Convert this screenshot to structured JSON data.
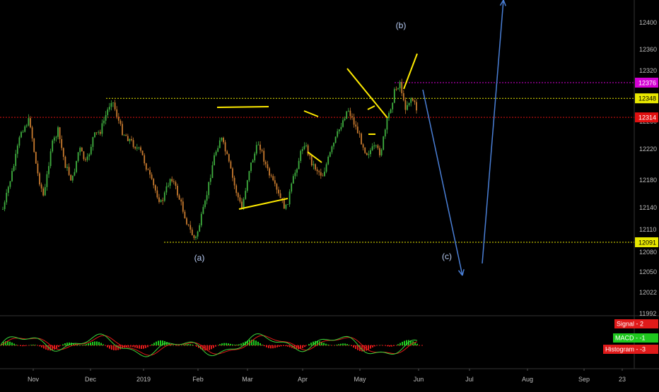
{
  "chart_data": {
    "type": "line",
    "price_axis": {
      "ticks": [
        "12400",
        "12360",
        "12320",
        "12260",
        "12220",
        "12180",
        "12140",
        "12110",
        "12080",
        "12050",
        "12022",
        "11992"
      ]
    },
    "price_labels": [
      {
        "text": "12376",
        "price": 12376,
        "color": "#d400d4"
      },
      {
        "text": "12348",
        "price": 12348,
        "color": "#e8e800"
      },
      {
        "text": "12314",
        "price": 12314,
        "color": "#e01010"
      },
      {
        "text": "12091",
        "price": 12091,
        "color": "#e8e800"
      }
    ],
    "x_axis": {
      "labels": [
        "Nov",
        "Dec",
        "2019",
        "Feb",
        "Mar",
        "Apr",
        "May",
        "Jun",
        "Jul",
        "Aug",
        "Sep",
        "23"
      ]
    },
    "wave_labels": [
      "(a)",
      "(b)",
      "(c)"
    ],
    "macd_legend": [
      {
        "name": "Signal",
        "value": "2",
        "color": "#e01a1a"
      },
      {
        "name": "MACD",
        "value": "-1",
        "color": "#1ec81e"
      },
      {
        "name": "Histogram",
        "value": "-3",
        "color": "#e01a1a"
      }
    ],
    "price_path": [
      [
        12150,
        5
      ],
      [
        12190,
        12
      ],
      [
        12230,
        20
      ],
      [
        12290,
        30
      ],
      [
        12310,
        42
      ],
      [
        12220,
        52
      ],
      [
        12170,
        62
      ],
      [
        12260,
        72
      ],
      [
        12290,
        82
      ],
      [
        12230,
        92
      ],
      [
        12200,
        102
      ],
      [
        12260,
        112
      ],
      [
        12230,
        122
      ],
      [
        12280,
        132
      ],
      [
        12290,
        142
      ],
      [
        12348,
        158
      ],
      [
        12290,
        172
      ],
      [
        12270,
        186
      ],
      [
        12250,
        200
      ],
      [
        12200,
        214
      ],
      [
        12160,
        228
      ],
      [
        12210,
        242
      ],
      [
        12160,
        256
      ],
      [
        12120,
        266
      ],
      [
        12094,
        276
      ],
      [
        12160,
        290
      ],
      [
        12240,
        302
      ],
      [
        12280,
        312
      ],
      [
        12240,
        322
      ],
      [
        12190,
        332
      ],
      [
        12150,
        342
      ],
      [
        12220,
        352
      ],
      [
        12270,
        366
      ],
      [
        12220,
        378
      ],
      [
        12180,
        392
      ],
      [
        12150,
        404
      ],
      [
        12210,
        416
      ],
      [
        12270,
        430
      ],
      [
        12230,
        442
      ],
      [
        12210,
        456
      ],
      [
        12260,
        470
      ],
      [
        12300,
        482
      ],
      [
        12330,
        492
      ],
      [
        12300,
        502
      ],
      [
        12250,
        518
      ],
      [
        12260,
        530
      ],
      [
        12250,
        538
      ],
      [
        12310,
        548
      ],
      [
        12360,
        558
      ],
      [
        12378,
        566
      ],
      [
        12330,
        572
      ],
      [
        12350,
        582
      ],
      [
        12320,
        592
      ]
    ]
  }
}
